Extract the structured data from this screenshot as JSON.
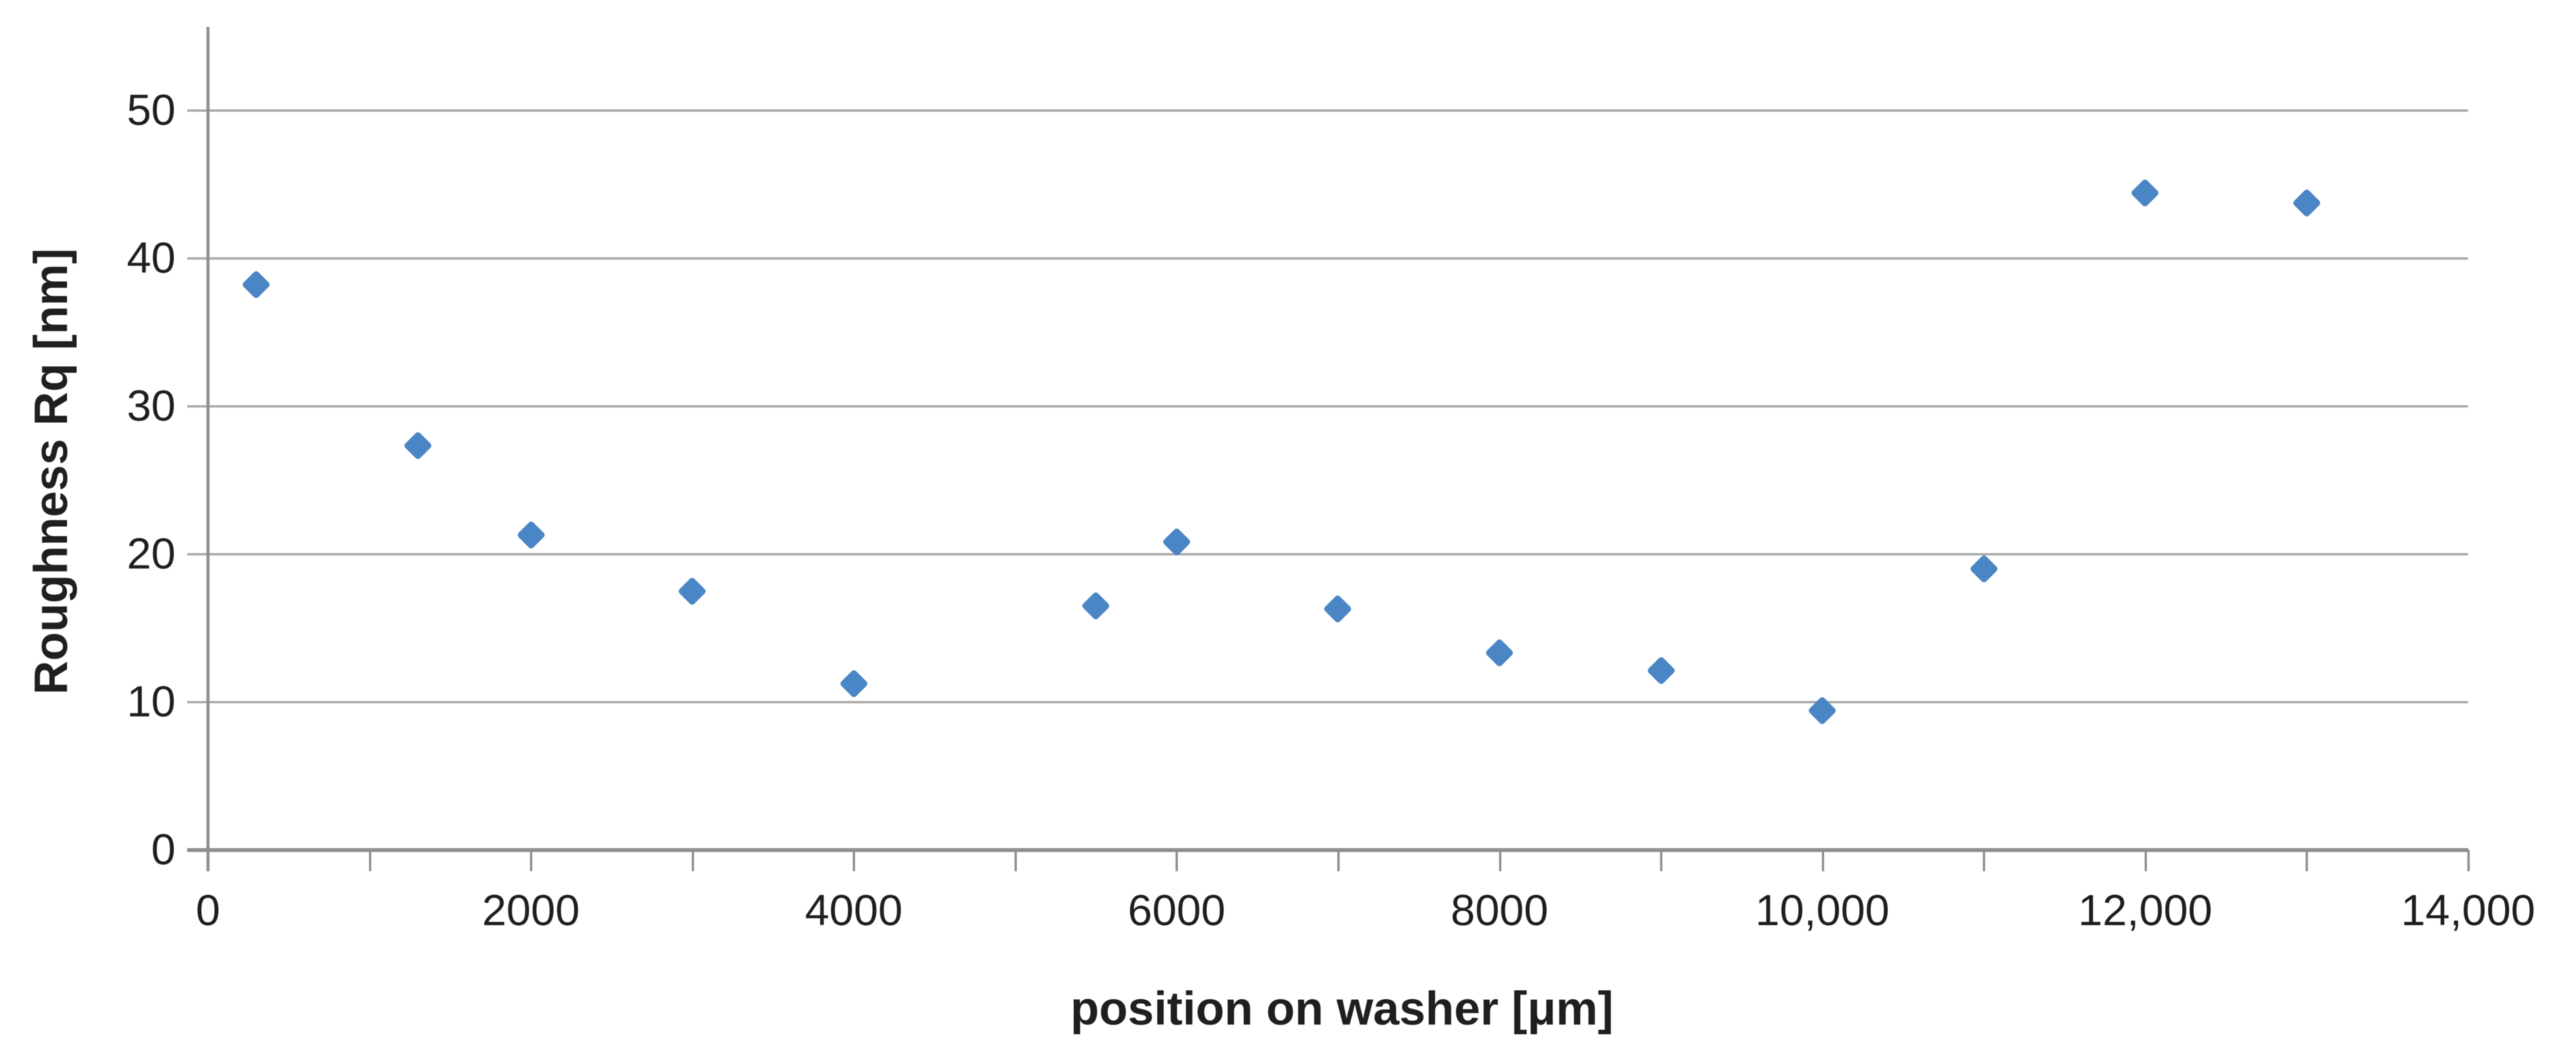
{
  "chart_data": {
    "type": "scatter",
    "title": "",
    "xlabel": "position on washer [μm]",
    "ylabel": "Roughness Rq [nm]",
    "xlim": [
      0,
      14000
    ],
    "ylim": [
      0,
      55
    ],
    "grid": "horizontal-major-only",
    "legend_position": "none",
    "marker": "diamond",
    "x_minor_tick_interval": 1000,
    "x_tick_labels": [
      {
        "value": 0,
        "label": "0"
      },
      {
        "value": 2000,
        "label": "2000"
      },
      {
        "value": 4000,
        "label": "4000"
      },
      {
        "value": 6000,
        "label": "6000"
      },
      {
        "value": 8000,
        "label": "8000"
      },
      {
        "value": 10000,
        "label": "10,000"
      },
      {
        "value": 12000,
        "label": "12,000"
      },
      {
        "value": 14000,
        "label": "14,000"
      }
    ],
    "y_tick_labels": [
      {
        "value": 0,
        "label": "0"
      },
      {
        "value": 10,
        "label": "10"
      },
      {
        "value": 20,
        "label": "20"
      },
      {
        "value": 30,
        "label": "30"
      },
      {
        "value": 40,
        "label": "40"
      },
      {
        "value": 50,
        "label": "50"
      }
    ],
    "series": [
      {
        "name": "Roughness Rq",
        "points": [
          {
            "x": 300,
            "y": 38.2
          },
          {
            "x": 1300,
            "y": 27.3
          },
          {
            "x": 2000,
            "y": 21.3
          },
          {
            "x": 3000,
            "y": 17.5
          },
          {
            "x": 4000,
            "y": 11.2
          },
          {
            "x": 5500,
            "y": 16.5
          },
          {
            "x": 6000,
            "y": 20.8
          },
          {
            "x": 7000,
            "y": 16.3
          },
          {
            "x": 8000,
            "y": 13.3
          },
          {
            "x": 9000,
            "y": 12.1
          },
          {
            "x": 10000,
            "y": 9.4
          },
          {
            "x": 11000,
            "y": 19.0
          },
          {
            "x": 12000,
            "y": 44.4
          },
          {
            "x": 13000,
            "y": 43.7
          }
        ]
      }
    ]
  },
  "colors": {
    "marker": "#4a85c5",
    "gridline": "#a9a9a9",
    "axis": "#8f8f8f",
    "text": "#1f1f1f",
    "background": "#ffffff"
  }
}
